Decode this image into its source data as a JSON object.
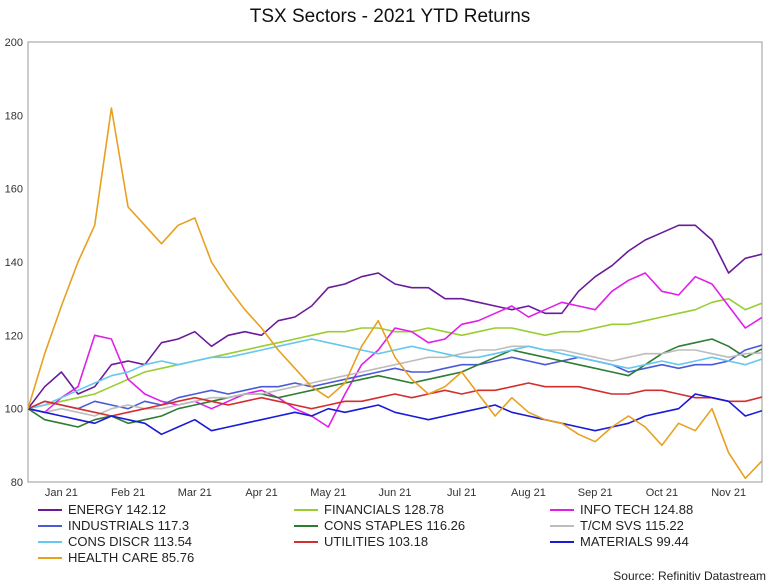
{
  "chart_data": {
    "type": "line",
    "title": "TSX Sectors - 2021 YTD Returns",
    "xlabel": "",
    "ylabel": "",
    "ylim": [
      80,
      200
    ],
    "y_ticks": [
      80,
      100,
      120,
      140,
      160,
      180,
      200
    ],
    "x_ticks": [
      "Jan 21",
      "Feb 21",
      "Mar 21",
      "Apr 21",
      "May 21",
      "Jun 21",
      "Jul 21",
      "Aug 21",
      "Sep 21",
      "Oct 21",
      "Nov 21"
    ],
    "x_axis": "months 2021 (0 = start of Jan, 11 = start of Dec)",
    "x": [
      0,
      0.25,
      0.5,
      0.75,
      1,
      1.25,
      1.5,
      1.75,
      2,
      2.25,
      2.5,
      2.75,
      3,
      3.25,
      3.5,
      3.75,
      4,
      4.25,
      4.5,
      4.75,
      5,
      5.25,
      5.5,
      5.75,
      6,
      6.25,
      6.5,
      6.75,
      7,
      7.25,
      7.5,
      7.75,
      8,
      8.25,
      8.5,
      8.75,
      9,
      9.25,
      9.5,
      9.75,
      10,
      10.25,
      10.5,
      10.75,
      11
    ],
    "grid": false,
    "legend_placement": "bottom",
    "series": [
      {
        "name": "ENERGY 142.12",
        "color": "#6a1b9a",
        "values": [
          100,
          106,
          110,
          104,
          106,
          112,
          113,
          112,
          118,
          119,
          121,
          117,
          120,
          121,
          120,
          124,
          125,
          128,
          133,
          134,
          136,
          137,
          134,
          133,
          133,
          130,
          130,
          129,
          128,
          127,
          128,
          126,
          126,
          132,
          136,
          139,
          143,
          146,
          148,
          150,
          150,
          146,
          137,
          141,
          142.12
        ]
      },
      {
        "name": "FINANCIALS 128.78",
        "color": "#9acd32",
        "values": [
          100,
          101,
          102,
          103,
          104,
          106,
          108,
          110,
          111,
          112,
          113,
          114,
          115,
          116,
          117,
          118,
          119,
          120,
          121,
          121,
          122,
          122,
          121,
          121,
          122,
          121,
          120,
          121,
          122,
          122,
          121,
          120,
          121,
          121,
          122,
          123,
          123,
          124,
          125,
          126,
          127,
          129,
          130,
          127,
          128.78
        ]
      },
      {
        "name": "INFO TECH 124.88",
        "color": "#e020e8",
        "values": [
          100,
          99,
          103,
          106,
          120,
          119,
          108,
          104,
          102,
          101,
          102,
          100,
          102,
          104,
          105,
          103,
          100,
          98,
          95,
          104,
          112,
          116,
          122,
          121,
          118,
          119,
          123,
          124,
          126,
          128,
          125,
          127,
          129,
          128,
          127,
          132,
          135,
          137,
          132,
          131,
          136,
          134,
          128,
          122,
          124.88
        ]
      },
      {
        "name": "INDUSTRIALS 117.3",
        "color": "#4a5ad8",
        "values": [
          100,
          102,
          101,
          100,
          102,
          101,
          100,
          102,
          101,
          103,
          104,
          105,
          104,
          105,
          106,
          106,
          107,
          106,
          107,
          108,
          109,
          110,
          111,
          110,
          110,
          111,
          112,
          112,
          113,
          114,
          113,
          112,
          113,
          114,
          113,
          112,
          110,
          111,
          112,
          111,
          112,
          112,
          113,
          116,
          117.3
        ]
      },
      {
        "name": "CONS STAPLES 116.26",
        "color": "#2e7d32",
        "values": [
          100,
          97,
          96,
          95,
          97,
          98,
          96,
          97,
          98,
          100,
          101,
          102,
          103,
          104,
          104,
          103,
          104,
          105,
          106,
          107,
          108,
          109,
          108,
          107,
          108,
          109,
          110,
          112,
          114,
          116,
          115,
          114,
          113,
          112,
          111,
          110,
          109,
          112,
          115,
          117,
          118,
          119,
          117,
          114,
          116.26
        ]
      },
      {
        "name": "T/CM SVS 115.22",
        "color": "#bdbdbd",
        "values": [
          100,
          99,
          100,
          99,
          98,
          100,
          101,
          100,
          100,
          101,
          102,
          103,
          103,
          104,
          104,
          105,
          106,
          107,
          108,
          109,
          110,
          111,
          112,
          113,
          114,
          114,
          115,
          116,
          116,
          117,
          117,
          116,
          116,
          115,
          114,
          113,
          114,
          115,
          115,
          116,
          116,
          115,
          114,
          115,
          115.22
        ]
      },
      {
        "name": "CONS DISCR 113.54",
        "color": "#64c8f0",
        "values": [
          100,
          101,
          103,
          105,
          107,
          109,
          110,
          112,
          113,
          112,
          113,
          114,
          114,
          115,
          116,
          117,
          118,
          119,
          118,
          117,
          116,
          115,
          116,
          117,
          116,
          115,
          114,
          114,
          115,
          116,
          117,
          116,
          115,
          114,
          113,
          112,
          111,
          112,
          113,
          112,
          113,
          114,
          113,
          112,
          113.54
        ]
      },
      {
        "name": "UTILITIES 103.18",
        "color": "#d32f2f",
        "values": [
          100,
          102,
          101,
          100,
          99,
          98,
          99,
          100,
          101,
          102,
          103,
          102,
          101,
          102,
          103,
          102,
          101,
          100,
          101,
          102,
          102,
          103,
          104,
          103,
          104,
          105,
          104,
          105,
          105,
          106,
          107,
          106,
          106,
          106,
          105,
          104,
          104,
          105,
          105,
          104,
          103,
          103,
          102,
          102,
          103.18
        ]
      },
      {
        "name": "MATERIALS 99.44",
        "color": "#1a1ad8",
        "values": [
          100,
          99,
          98,
          97,
          96,
          98,
          97,
          96,
          93,
          95,
          97,
          94,
          95,
          96,
          97,
          98,
          99,
          98,
          100,
          99,
          100,
          101,
          99,
          98,
          97,
          98,
          99,
          100,
          101,
          99,
          98,
          97,
          96,
          95,
          94,
          95,
          96,
          98,
          99,
          100,
          104,
          103,
          102,
          98,
          99.44
        ]
      },
      {
        "name": "HEALTH CARE 85.76",
        "color": "#e8a020",
        "values": [
          100,
          115,
          128,
          140,
          150,
          182,
          155,
          150,
          145,
          150,
          152,
          140,
          133,
          127,
          122,
          116,
          111,
          106,
          103,
          107,
          117,
          124,
          114,
          108,
          104,
          106,
          110,
          104,
          98,
          103,
          99,
          97,
          96,
          93,
          91,
          95,
          98,
          95,
          90,
          96,
          94,
          100,
          88,
          81,
          85.76
        ]
      }
    ]
  },
  "footer": {
    "source": "Source: Refinitiv Datastream"
  }
}
